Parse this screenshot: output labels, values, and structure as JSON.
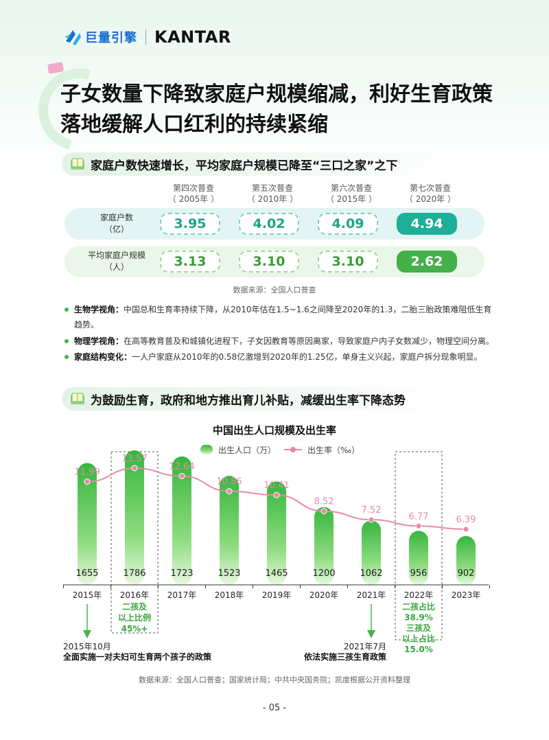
{
  "header": {
    "logo_cn": "巨量引擎",
    "logo_en": "KANTAR"
  },
  "title": {
    "line1": "子女数量下降致家庭户规模缩减，利好生育政策",
    "line2": "落地缓解人口红利的持续紧缩"
  },
  "section1": {
    "heading": "家庭户数快速增长，平均家庭户规模已降至“三口之家”之下",
    "columns": [
      {
        "name": "第四次普查",
        "year": "（ 2005年 ）"
      },
      {
        "name": "第五次普查",
        "year": "（ 2010年 ）"
      },
      {
        "name": "第六次普查",
        "year": "（ 2015年 ）"
      },
      {
        "name": "第七次普查",
        "year": "（ 2020年 ）"
      }
    ],
    "rows": [
      {
        "label1": "家庭户数",
        "label2": "（亿）",
        "values": [
          "3.95",
          "4.02",
          "4.09",
          "4.94"
        ]
      },
      {
        "label1": "平均家庭户规模",
        "label2": "（人）",
        "values": [
          "3.13",
          "3.10",
          "3.10",
          "2.62"
        ]
      }
    ],
    "source": "数据来源：全国人口普查",
    "colors": {
      "row1_bg": "#e3f4f5",
      "row2_bg": "#eaf6e9",
      "teal": "#1fae97",
      "green": "#44b04a"
    }
  },
  "bullets": [
    {
      "label": "生物学视角：",
      "text": "中国总和生育率持续下降，从2010年估在1.5~1.6之间降至2020年的1.3，二胎三胎政策难阻低生育",
      "text2": "趋势。"
    },
    {
      "label": "物理学视角：",
      "text": "在高等教育普及和城镇化进程下，子女因教育等原因离家，导致家庭户内子女数减少，物理空间分离。"
    },
    {
      "label": "家庭结构变化：",
      "text": "一人户家庭从2010年的0.58亿激增到2020年的1.25亿，单身主义兴起，家庭户拆分现象明显。"
    }
  ],
  "section2": {
    "heading": "为鼓励生育，政府和地方推出育儿补贴，减缓出生率下降态势",
    "source": "数据来源：全国人口普查；国家统计局；中共中央国务院；凯度根据公开资料整理"
  },
  "chart_data": {
    "type": "bar",
    "title": "中国出生人口规模及出生率",
    "categories": [
      "2015年",
      "2016年",
      "2017年",
      "2018年",
      "2019年",
      "2020年",
      "2021年",
      "2022年",
      "2023年"
    ],
    "series": [
      {
        "name": "出生人口（万）",
        "kind": "bar",
        "values": [
          1655,
          1786,
          1723,
          1523,
          1465,
          1200,
          1062,
          956,
          902
        ],
        "color": "#3dbb46"
      },
      {
        "name": "出生率（‰）",
        "kind": "line",
        "values": [
          11.99,
          13.57,
          12.64,
          10.86,
          10.41,
          8.52,
          7.52,
          6.77,
          6.39
        ],
        "color": "#e889a8"
      }
    ],
    "legend_position": "top",
    "annotations": [
      {
        "category": "2015年",
        "lines": [
          "2015年10月",
          "全面实施一对夫妇可生育两个孩子的政策"
        ]
      },
      {
        "category": "2016年",
        "lines": [
          "二孩及",
          "以上比例",
          "45%+"
        ]
      },
      {
        "category": "2021年",
        "lines": [
          "2021年7月",
          "依法实施三孩生育政策"
        ]
      },
      {
        "category": "2022年",
        "lines": [
          "二孩占比",
          "38.9%",
          "三孩及",
          "以上占比",
          "15.0%"
        ]
      }
    ]
  },
  "page_number": "- 05 -"
}
